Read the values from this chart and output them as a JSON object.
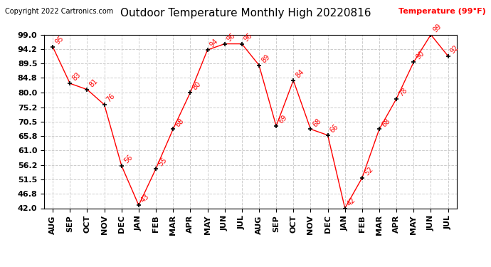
{
  "months": [
    "AUG",
    "SEP",
    "OCT",
    "NOV",
    "DEC",
    "JAN",
    "FEB",
    "MAR",
    "APR",
    "MAY",
    "JUN",
    "JUL",
    "AUG",
    "SEP",
    "OCT",
    "NOV",
    "DEC",
    "JAN",
    "FEB",
    "MAR",
    "APR",
    "MAY",
    "JUN",
    "JUL"
  ],
  "values": [
    95,
    83,
    81,
    76,
    56,
    43,
    55,
    68,
    80,
    94,
    96,
    96,
    89,
    69,
    84,
    68,
    66,
    42,
    52,
    68,
    78,
    90,
    99,
    92
  ],
  "title": "Outdoor Temperature Monthly High 20220816",
  "ylabel_text": "Temperature (99°F)",
  "copyright": "Copyright 2022 Cartronics.com",
  "line_color": "red",
  "marker_color": "black",
  "label_color": "red",
  "ylim_min": 42.0,
  "ylim_max": 99.0,
  "yticks": [
    42.0,
    46.8,
    51.5,
    56.2,
    61.0,
    65.8,
    70.5,
    75.2,
    80.0,
    84.8,
    89.5,
    94.2,
    99.0
  ],
  "background_color": "#ffffff",
  "grid_color": "#cccccc",
  "title_fontsize": 11,
  "label_fontsize": 7,
  "tick_fontsize": 8,
  "copyright_fontsize": 7,
  "ylabel_fontsize": 8
}
